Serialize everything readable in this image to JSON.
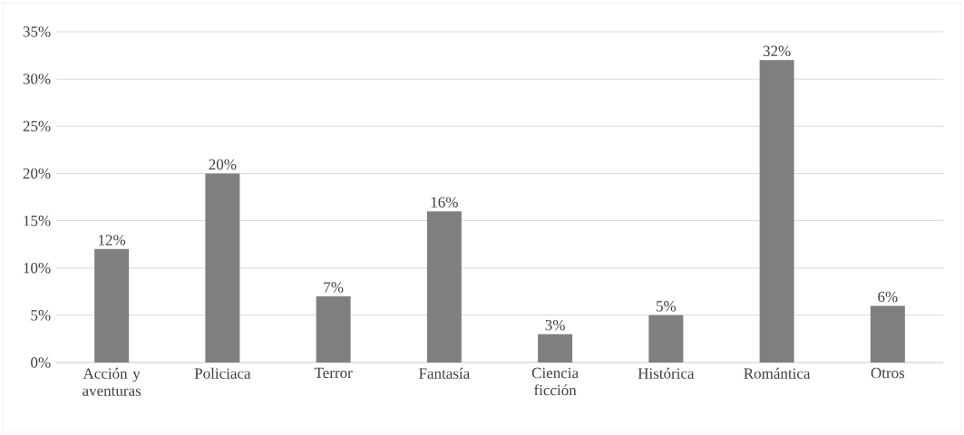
{
  "chart_data": {
    "type": "bar",
    "categories": [
      "Acción y aventuras",
      "Policiaca",
      "Terror",
      "Fantasía",
      "Ciencia ficción",
      "Histórica",
      "Romántica",
      "Otros"
    ],
    "values": [
      12,
      20,
      7,
      16,
      3,
      5,
      32,
      6
    ],
    "value_labels": [
      "12%",
      "20%",
      "7%",
      "16%",
      "3%",
      "5%",
      "32%",
      "6%"
    ],
    "color": "#7f7f7f",
    "ylim": [
      0,
      35
    ],
    "yticks": [
      {
        "value": 0,
        "label": "0%"
      },
      {
        "value": 5,
        "label": "5%"
      },
      {
        "value": 10,
        "label": "10%"
      },
      {
        "value": 15,
        "label": "15%"
      },
      {
        "value": 20,
        "label": "20%"
      },
      {
        "value": 25,
        "label": "25%"
      },
      {
        "value": 30,
        "label": "30%"
      },
      {
        "value": 35,
        "label": "35%"
      }
    ],
    "grid": "y"
  }
}
